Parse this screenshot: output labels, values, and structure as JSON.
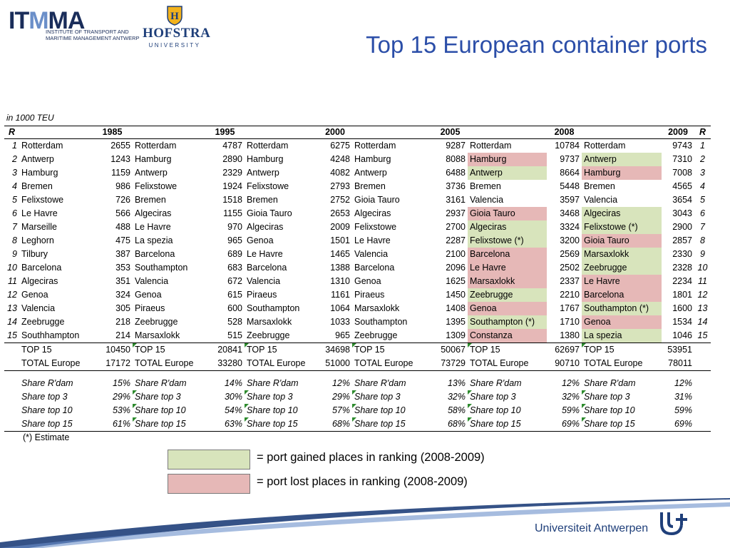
{
  "header": {
    "itmma_word": "ITMMA",
    "itmma_sub_1": "INSTITUTE OF TRANSPORT AND",
    "itmma_sub_2": "MARITIME MANAGEMENT ANTWERP",
    "hofstra_word": "HOFSTRA",
    "hofstra_sub": "UNIVERSITY",
    "title": "Top 15 European container ports"
  },
  "unit_label": "in 1000 TEU",
  "colors": {
    "gained": "#d8e4bc",
    "lost": "#e6b8b7",
    "title": "#2b4ea8",
    "brand": "#1f3f7a"
  },
  "chart_data": {
    "type": "table",
    "title": "Top 15 European container ports",
    "unit": "in 1000 TEU",
    "columns": [
      "R",
      "1985",
      "1995",
      "2000",
      "2005",
      "2008",
      "2009",
      "R"
    ],
    "rows": [
      {
        "rank": "1",
        "c": [
          [
            "Rotterdam",
            "2655",
            ""
          ],
          [
            "Rotterdam",
            "4787",
            ""
          ],
          [
            "Rotterdam",
            "6275",
            ""
          ],
          [
            "Rotterdam",
            "9287",
            ""
          ],
          [
            "Rotterdam",
            "10784",
            ""
          ],
          [
            "Rotterdam",
            "9743",
            ""
          ]
        ]
      },
      {
        "rank": "2",
        "c": [
          [
            "Antwerp",
            "1243",
            ""
          ],
          [
            "Hamburg",
            "2890",
            ""
          ],
          [
            "Hamburg",
            "4248",
            ""
          ],
          [
            "Hamburg",
            "8088",
            ""
          ],
          [
            "Hamburg",
            "9737",
            "lost"
          ],
          [
            "Antwerp",
            "7310",
            "gained"
          ]
        ]
      },
      {
        "rank": "3",
        "c": [
          [
            "Hamburg",
            "1159",
            ""
          ],
          [
            "Antwerp",
            "2329",
            ""
          ],
          [
            "Antwerp",
            "4082",
            ""
          ],
          [
            "Antwerp",
            "6488",
            ""
          ],
          [
            "Antwerp",
            "8664",
            "gained"
          ],
          [
            "Hamburg",
            "7008",
            "lost"
          ]
        ]
      },
      {
        "rank": "4",
        "c": [
          [
            "Bremen",
            "986",
            ""
          ],
          [
            "Felixstowe",
            "1924",
            ""
          ],
          [
            "Felixstowe",
            "2793",
            ""
          ],
          [
            "Bremen",
            "3736",
            ""
          ],
          [
            "Bremen",
            "5448",
            ""
          ],
          [
            "Bremen",
            "4565",
            ""
          ]
        ]
      },
      {
        "rank": "5",
        "c": [
          [
            "Felixstowe",
            "726",
            ""
          ],
          [
            "Bremen",
            "1518",
            ""
          ],
          [
            "Bremen",
            "2752",
            ""
          ],
          [
            "Gioia Tauro",
            "3161",
            ""
          ],
          [
            "Valencia",
            "3597",
            ""
          ],
          [
            "Valencia",
            "3654",
            ""
          ]
        ]
      },
      {
        "rank": "6",
        "c": [
          [
            "Le Havre",
            "566",
            ""
          ],
          [
            "Algeciras",
            "1155",
            ""
          ],
          [
            "Gioia Tauro",
            "2653",
            ""
          ],
          [
            "Algeciras",
            "2937",
            ""
          ],
          [
            "Gioia Tauro",
            "3468",
            "lost"
          ],
          [
            "Algeciras",
            "3043",
            "gained"
          ]
        ]
      },
      {
        "rank": "7",
        "c": [
          [
            "Marseille",
            "488",
            ""
          ],
          [
            "Le Havre",
            "970",
            ""
          ],
          [
            "Algeciras",
            "2009",
            ""
          ],
          [
            "Felixstowe",
            "2700",
            ""
          ],
          [
            "Algeciras",
            "3324",
            "gained"
          ],
          [
            "Felixstowe (*)",
            "2900",
            "gained"
          ]
        ]
      },
      {
        "rank": "8",
        "c": [
          [
            "Leghorn",
            "475",
            ""
          ],
          [
            "La spezia",
            "965",
            ""
          ],
          [
            "Genoa",
            "1501",
            ""
          ],
          [
            "Le Havre",
            "2287",
            ""
          ],
          [
            "Felixstowe (*)",
            "3200",
            "gained"
          ],
          [
            "Gioia Tauro",
            "2857",
            "lost"
          ]
        ]
      },
      {
        "rank": "9",
        "c": [
          [
            "Tilbury",
            "387",
            ""
          ],
          [
            "Barcelona",
            "689",
            ""
          ],
          [
            "Le Havre",
            "1465",
            ""
          ],
          [
            "Valencia",
            "2100",
            ""
          ],
          [
            "Barcelona",
            "2569",
            "lost"
          ],
          [
            "Marsaxlokk",
            "2330",
            "gained"
          ]
        ]
      },
      {
        "rank": "10",
        "c": [
          [
            "Barcelona",
            "353",
            ""
          ],
          [
            "Southampton",
            "683",
            ""
          ],
          [
            "Barcelona",
            "1388",
            ""
          ],
          [
            "Barcelona",
            "2096",
            ""
          ],
          [
            "Le Havre",
            "2502",
            "lost"
          ],
          [
            "Zeebrugge",
            "2328",
            "gained"
          ]
        ]
      },
      {
        "rank": "11",
        "c": [
          [
            "Algeciras",
            "351",
            ""
          ],
          [
            "Valencia",
            "672",
            ""
          ],
          [
            "Valencia",
            "1310",
            ""
          ],
          [
            "Genoa",
            "1625",
            ""
          ],
          [
            "Marsaxlokk",
            "2337",
            "lost"
          ],
          [
            "Le Havre",
            "2234",
            "lost"
          ]
        ]
      },
      {
        "rank": "12",
        "c": [
          [
            "Genoa",
            "324",
            ""
          ],
          [
            "Genoa",
            "615",
            ""
          ],
          [
            "Piraeus",
            "1161",
            ""
          ],
          [
            "Piraeus",
            "1450",
            ""
          ],
          [
            "Zeebrugge",
            "2210",
            "gained"
          ],
          [
            "Barcelona",
            "1801",
            "lost"
          ]
        ]
      },
      {
        "rank": "13",
        "c": [
          [
            "Valencia",
            "305",
            ""
          ],
          [
            "Piraeus",
            "600",
            ""
          ],
          [
            "Southampton",
            "1064",
            ""
          ],
          [
            "Marsaxlokk",
            "1408",
            ""
          ],
          [
            "Genoa",
            "1767",
            "lost"
          ],
          [
            "Southampton (*)",
            "1600",
            "gained"
          ]
        ]
      },
      {
        "rank": "14",
        "c": [
          [
            "Zeebrugge",
            "218",
            ""
          ],
          [
            "Zeebrugge",
            "528",
            ""
          ],
          [
            "Marsaxlokk",
            "1033",
            ""
          ],
          [
            "Southampton",
            "1395",
            ""
          ],
          [
            "Southampton (*)",
            "1710",
            "gained"
          ],
          [
            "Genoa",
            "1534",
            "lost"
          ]
        ]
      },
      {
        "rank": "15",
        "c": [
          [
            "Southhampton",
            "214",
            ""
          ],
          [
            "Marsaxlokk",
            "515",
            ""
          ],
          [
            "Zeebrugge",
            "965",
            ""
          ],
          [
            "Zeebrugge",
            "1309",
            ""
          ],
          [
            "Constanza",
            "1380",
            "lost"
          ],
          [
            "La spezia",
            "1046",
            "gained"
          ]
        ]
      }
    ],
    "totals": [
      {
        "label": "TOP 15",
        "values": [
          "10450",
          "20841",
          "34698",
          "50067",
          "62697",
          "53951"
        ]
      },
      {
        "label": "TOTAL Europe",
        "values": [
          "17172",
          "33280",
          "51000",
          "73729",
          "90710",
          "78011"
        ]
      }
    ],
    "shares": [
      {
        "label": "Share R'dam",
        "values": [
          "15%",
          "14%",
          "12%",
          "13%",
          "12%",
          "12%"
        ]
      },
      {
        "label": "Share top 3",
        "values": [
          "29%",
          "30%",
          "29%",
          "32%",
          "32%",
          "31%"
        ]
      },
      {
        "label": "Share top 10",
        "values": [
          "53%",
          "54%",
          "57%",
          "58%",
          "59%",
          "59%"
        ]
      },
      {
        "label": "Share top 15",
        "values": [
          "61%",
          "63%",
          "68%",
          "68%",
          "69%",
          "69%"
        ]
      }
    ]
  },
  "footnote": "(*) Estimate",
  "legend": {
    "gained": "= port gained places in ranking (2008-2009)",
    "lost": "= port lost places in ranking (2008-2009)"
  },
  "footer": {
    "university": "Universiteit Antwerpen"
  }
}
